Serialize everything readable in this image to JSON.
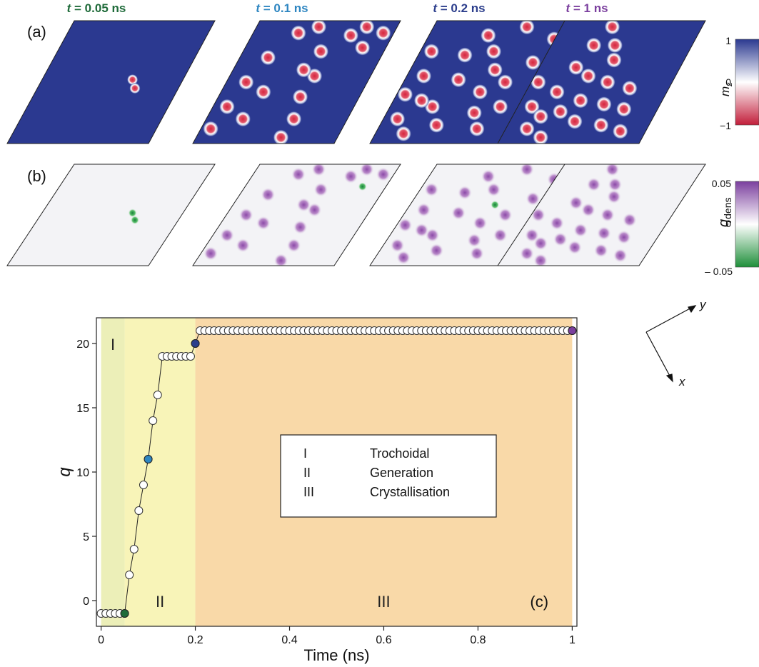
{
  "figure": {
    "panel_a_label": "(a)",
    "panel_b_label": "(b)",
    "panel_c_label": "(c)",
    "time_titles": [
      {
        "t": "t",
        "rest": " = 0.05 ns",
        "color": "#1f6b3a"
      },
      {
        "t": "t",
        "rest": " = 0.1 ns",
        "color": "#2e86c1"
      },
      {
        "t": "t",
        "rest": " = 0.2 ns",
        "color": "#2c3e8c"
      },
      {
        "t": "t",
        "rest": " = 1 ns",
        "color": "#7b3f9e"
      }
    ],
    "colorbar_mz": {
      "label": "m",
      "sub": "z",
      "max": "1",
      "mid": "0",
      "min": "−1",
      "colors": [
        "#2b3990",
        "#ffffff",
        "#c21e3a"
      ]
    },
    "colorbar_q": {
      "label": "q",
      "sub": "dens",
      "max": "0.05",
      "mid": "0",
      "min": "– 0.05",
      "colors": [
        "#7b3f9e",
        "#ffffff",
        "#1f8f3a"
      ]
    },
    "axes_indicator": {
      "x": "x",
      "y": "y"
    },
    "colors": {
      "background_mz": "#2b3990",
      "skyrmion_core": "#d7263d",
      "qdens_spot": "#9b5fb3",
      "qdens_neg": "#1f8f3a",
      "region1": "#ecefb8",
      "region2": "#f8f4b8",
      "region3": "#f9d9a8"
    }
  },
  "chart_data": {
    "type": "scatter",
    "xlabel": "Time (ns)",
    "ylabel": "q",
    "xlim": [
      -0.01,
      1.01
    ],
    "ylim": [
      -2,
      22
    ],
    "xticks": [
      "0",
      "0.2",
      "0.4",
      "0.6",
      "0.8",
      "1"
    ],
    "xtick_values": [
      0,
      0.2,
      0.4,
      0.6,
      0.8,
      1
    ],
    "yticks": [
      "0",
      "5",
      "10",
      "15",
      "20"
    ],
    "ytick_values": [
      0,
      5,
      10,
      15,
      20
    ],
    "regions": [
      {
        "label": "I",
        "x0": 0,
        "x1": 0.05
      },
      {
        "label": "II",
        "x0": 0.05,
        "x1": 0.2
      },
      {
        "label": "III",
        "x0": 0.2,
        "x1": 1
      }
    ],
    "legend": [
      {
        "num": "I",
        "name": "Trochoidal"
      },
      {
        "num": "II",
        "name": "Generation"
      },
      {
        "num": "III",
        "name": "Crystallisation"
      }
    ],
    "points": [
      [
        0.0,
        -1
      ],
      [
        0.01,
        -1
      ],
      [
        0.02,
        -1
      ],
      [
        0.03,
        -1
      ],
      [
        0.04,
        -1
      ],
      [
        0.05,
        -1
      ],
      [
        0.06,
        2
      ],
      [
        0.07,
        4
      ],
      [
        0.08,
        7
      ],
      [
        0.09,
        9
      ],
      [
        0.1,
        11
      ],
      [
        0.11,
        14
      ],
      [
        0.12,
        16
      ],
      [
        0.13,
        19
      ],
      [
        0.14,
        19
      ],
      [
        0.15,
        19
      ],
      [
        0.16,
        19
      ],
      [
        0.17,
        19
      ],
      [
        0.18,
        19
      ],
      [
        0.19,
        19
      ],
      [
        0.2,
        20
      ]
    ],
    "plateau": {
      "x_start": 0.21,
      "x_end": 1.0,
      "step": 0.01,
      "value": 21
    },
    "highlighted": [
      {
        "x": 0.05,
        "y": -1,
        "color": "#1f6b3a"
      },
      {
        "x": 0.1,
        "y": 11,
        "color": "#2e86c1"
      },
      {
        "x": 0.2,
        "y": 20,
        "color": "#2c3e8c"
      },
      {
        "x": 1.0,
        "y": 21,
        "color": "#7b3f9e"
      }
    ]
  }
}
